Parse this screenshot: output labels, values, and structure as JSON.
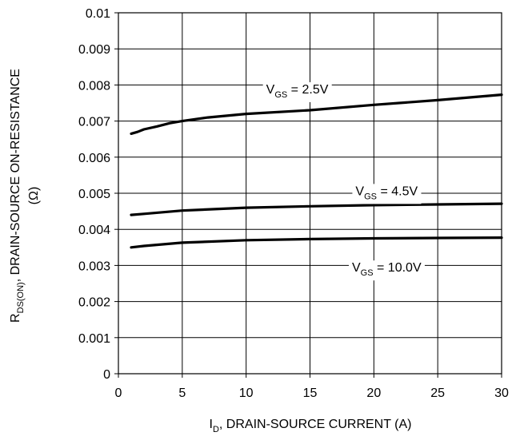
{
  "chart_data": {
    "type": "line",
    "title": "",
    "xlabel": {
      "main": "I",
      "sub": "D",
      "rest": ", DRAIN-SOURCE CURRENT (A)"
    },
    "ylabel": {
      "main": "R",
      "sub": "DS(ON)",
      "rest": ", DRAIN-SOURCE ON-RESISTANCE",
      "unit": "(Ω)"
    },
    "xlim": [
      0,
      30
    ],
    "ylim": [
      0,
      0.01
    ],
    "grid": true,
    "x_ticks": [
      {
        "value": 0,
        "label": "0"
      },
      {
        "value": 5,
        "label": "5"
      },
      {
        "value": 10,
        "label": "10"
      },
      {
        "value": 15,
        "label": "15"
      },
      {
        "value": 20,
        "label": "20"
      },
      {
        "value": 25,
        "label": "25"
      },
      {
        "value": 30,
        "label": "30"
      }
    ],
    "y_ticks": [
      {
        "value": 0,
        "label": "0"
      },
      {
        "value": 0.001,
        "label": "0.001"
      },
      {
        "value": 0.002,
        "label": "0.002"
      },
      {
        "value": 0.003,
        "label": "0.003"
      },
      {
        "value": 0.004,
        "label": "0.004"
      },
      {
        "value": 0.005,
        "label": "0.005"
      },
      {
        "value": 0.006,
        "label": "0.006"
      },
      {
        "value": 0.007,
        "label": "0.007"
      },
      {
        "value": 0.008,
        "label": "0.008"
      },
      {
        "value": 0.009,
        "label": "0.009"
      },
      {
        "value": 0.01,
        "label": "0.01"
      }
    ],
    "series": [
      {
        "label": {
          "main": "V",
          "sub": "GS",
          "rest": " = 2.5V"
        },
        "label_at": {
          "x": 14,
          "y": 0.0079
        },
        "color": "#000000",
        "points": [
          [
            1,
            0.00665
          ],
          [
            1.5,
            0.0067
          ],
          [
            2,
            0.00677
          ],
          [
            3,
            0.00685
          ],
          [
            4,
            0.00694
          ],
          [
            5,
            0.007
          ],
          [
            7,
            0.0071
          ],
          [
            10,
            0.0072
          ],
          [
            15,
            0.0073
          ],
          [
            20,
            0.00745
          ],
          [
            25,
            0.00758
          ],
          [
            30,
            0.00773
          ]
        ]
      },
      {
        "label": {
          "main": "V",
          "sub": "GS",
          "rest": " = 4.5V"
        },
        "label_at": {
          "x": 21,
          "y": 0.00508
        },
        "color": "#000000",
        "points": [
          [
            1,
            0.0044
          ],
          [
            2,
            0.00443
          ],
          [
            5,
            0.00452
          ],
          [
            10,
            0.0046
          ],
          [
            15,
            0.00464
          ],
          [
            20,
            0.00467
          ],
          [
            25,
            0.00469
          ],
          [
            30,
            0.00471
          ]
        ]
      },
      {
        "label": {
          "main": "V",
          "sub": "GS",
          "rest": " = 10.0V"
        },
        "label_at": {
          "x": 21,
          "y": 0.00296
        },
        "color": "#000000",
        "points": [
          [
            1,
            0.0035
          ],
          [
            2,
            0.00354
          ],
          [
            5,
            0.00363
          ],
          [
            10,
            0.0037
          ],
          [
            15,
            0.00373
          ],
          [
            20,
            0.00375
          ],
          [
            25,
            0.00376
          ],
          [
            30,
            0.00377
          ]
        ]
      }
    ]
  }
}
